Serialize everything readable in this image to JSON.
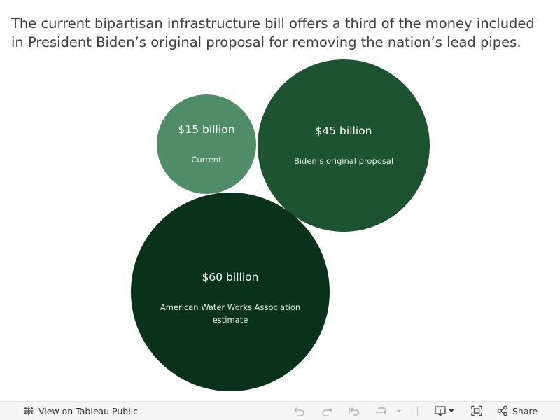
{
  "title": "The current bipartisan infrastructure bill offers a third of the money included in President Biden’s original proposal for removing the nation’s lead pipes.",
  "chart_data": {
    "type": "bubble",
    "units": "billion USD",
    "bubbles": [
      {
        "value": 15,
        "value_label": "$15 billion",
        "label": [
          "Current"
        ],
        "color": "#4f8c67"
      },
      {
        "value": 45,
        "value_label": "$45 billion",
        "label": [
          "Biden’s original proposal"
        ],
        "color": "#1e5331"
      },
      {
        "value": 60,
        "value_label": "$60 billion",
        "label": [
          "American Water Works Association",
          "estimate"
        ],
        "color": "#0a3119"
      }
    ]
  },
  "toolbar": {
    "view_label": "View on Tableau Public",
    "share_label": "Share"
  },
  "icons": {
    "tableau": "tableau-logo-icon",
    "undo": "undo-icon",
    "redo": "redo-icon",
    "revert": "revert-icon",
    "refresh": "refresh-icon",
    "pause": "pause-dropdown-icon",
    "download": "download-icon",
    "fullscreen": "fullscreen-icon",
    "share": "share-icon"
  }
}
